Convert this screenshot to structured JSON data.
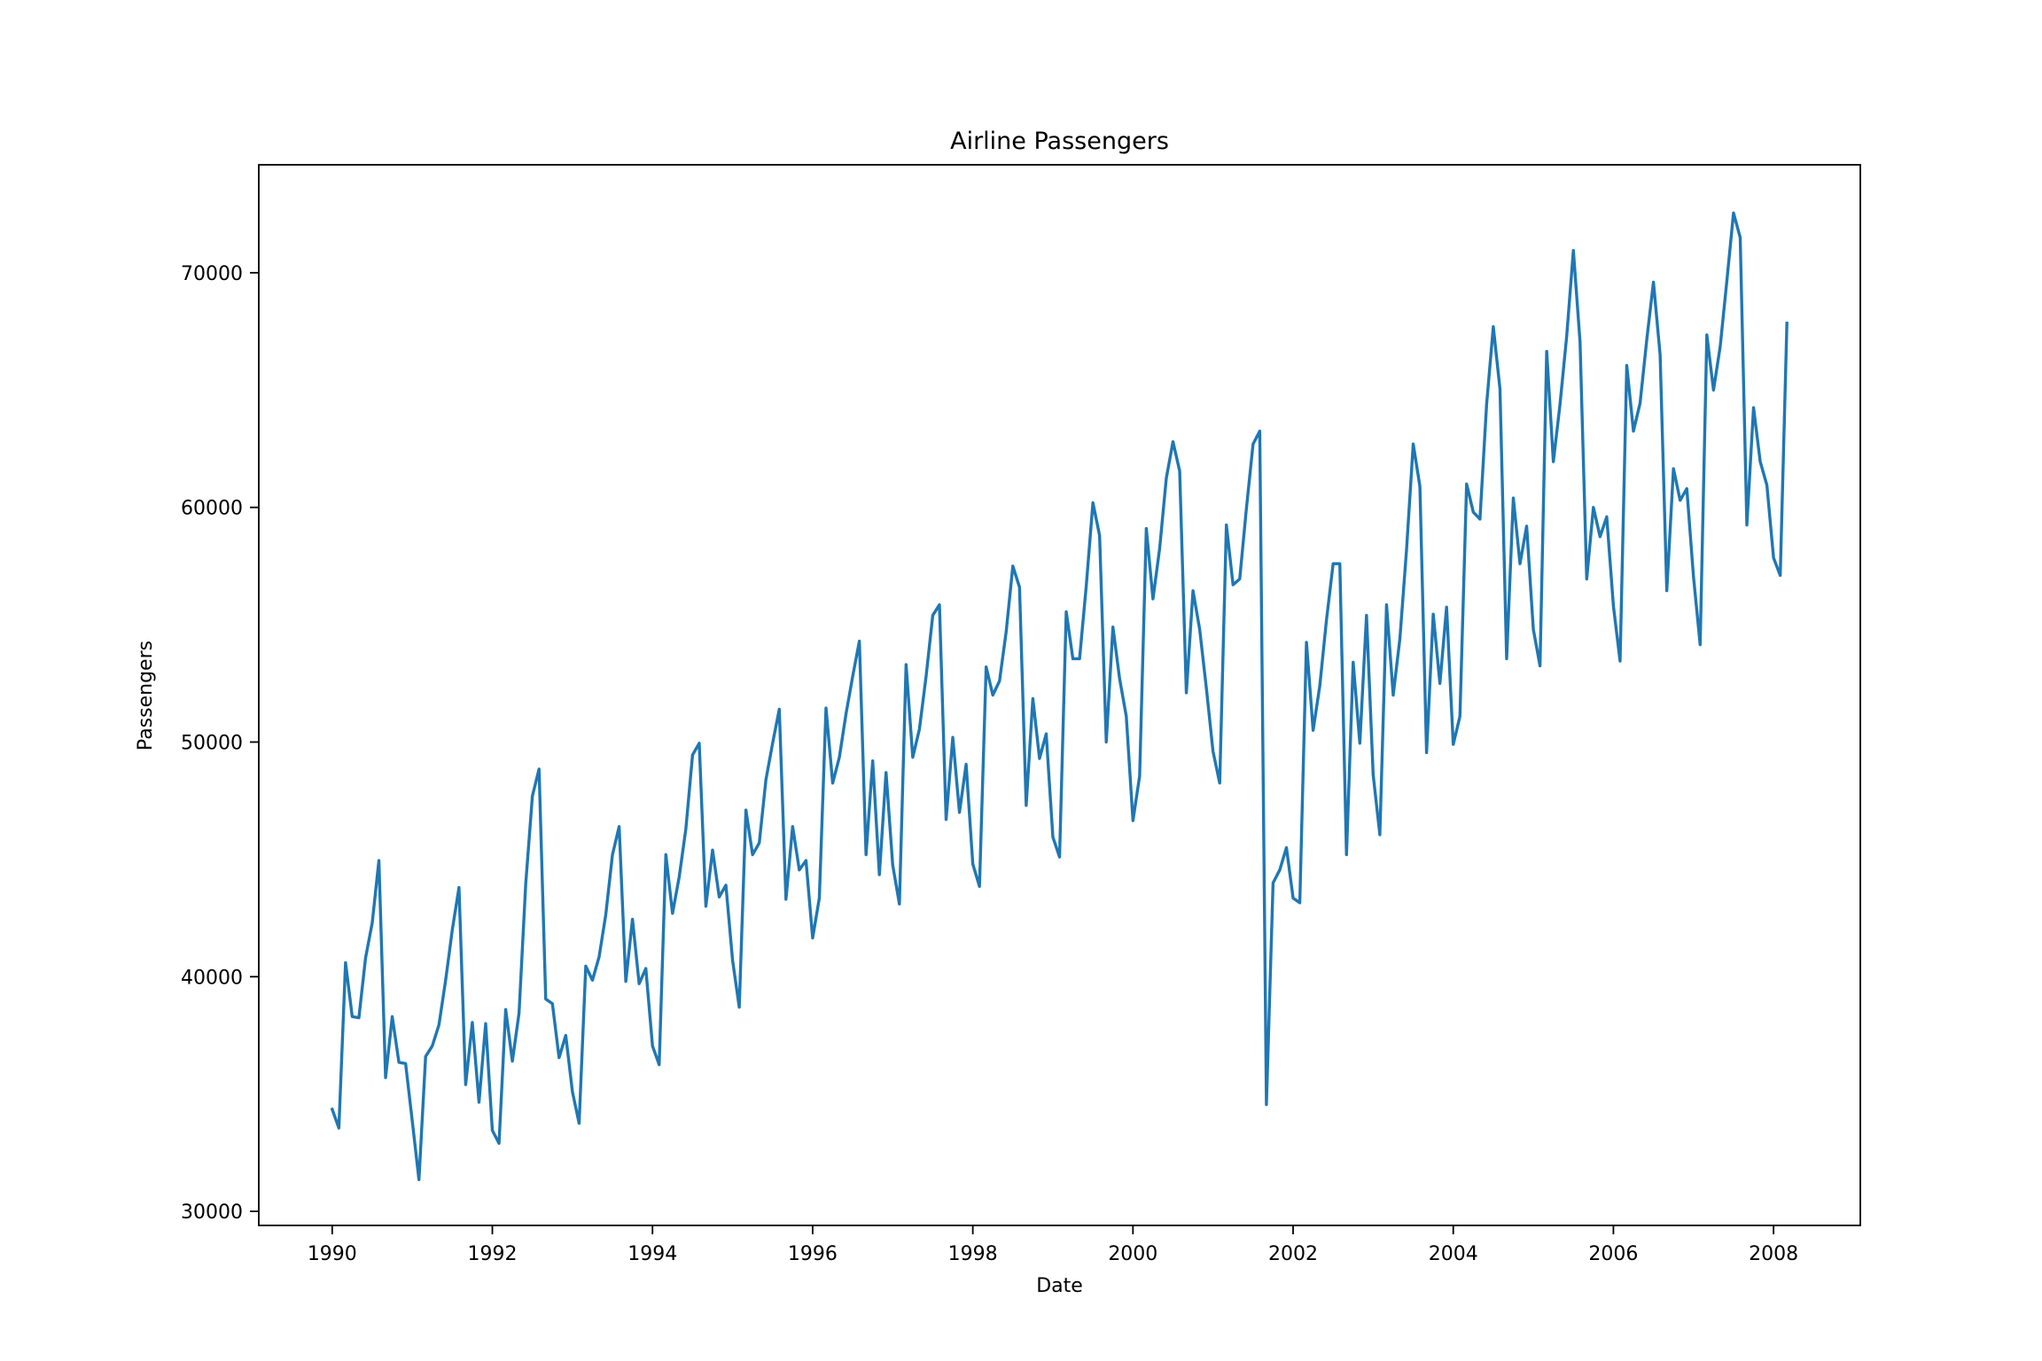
{
  "chart_data": {
    "type": "line",
    "title": "Airline Passengers",
    "xlabel": "Date",
    "ylabel": "Passengers",
    "xlim": [
      "1989-02",
      "2009-02"
    ],
    "ylim": [
      29400,
      74600
    ],
    "x_ticks": [
      "1990",
      "1992",
      "1994",
      "1996",
      "1998",
      "2000",
      "2002",
      "2004",
      "2006",
      "2008"
    ],
    "y_ticks": [
      30000,
      40000,
      50000,
      60000,
      70000
    ],
    "y_tick_labels": [
      "30000",
      "40000",
      "50000",
      "60000",
      "70000"
    ],
    "grid": false,
    "color": "#1f77b4",
    "series": [
      {
        "start": "1990-01",
        "frequency": "monthly",
        "values": [
          34350,
          33550,
          40600,
          38300,
          38250,
          40800,
          42300,
          44950,
          35700,
          38300,
          36350,
          36300,
          33850,
          31350,
          36600,
          37050,
          37950,
          39850,
          42000,
          43800,
          35400,
          38050,
          34650,
          38000,
          33450,
          32900,
          38600,
          36400,
          38450,
          43950,
          47700,
          48850,
          39050,
          38850,
          36550,
          37500,
          35100,
          33750,
          40450,
          39850,
          40850,
          42650,
          45200,
          46400,
          39800,
          42450,
          39700,
          40350,
          37050,
          36250,
          45200,
          42700,
          44250,
          46300,
          49450,
          49950,
          43000,
          45400,
          43400,
          43900,
          40700,
          38700,
          47100,
          45200,
          45700,
          48400,
          49950,
          51400,
          43300,
          46400,
          44550,
          44950,
          41650,
          43350,
          51450,
          48250,
          49350,
          51200,
          52800,
          54300,
          45200,
          49200,
          44350,
          48700,
          44750,
          43100,
          53300,
          49350,
          50550,
          52800,
          55400,
          55850,
          46700,
          50200,
          47000,
          49050,
          44800,
          43850,
          53200,
          52000,
          52600,
          54700,
          57500,
          56600,
          47300,
          51850,
          49300,
          50350,
          45950,
          45100,
          55550,
          53550,
          53550,
          56650,
          60200,
          58800,
          50000,
          54900,
          52700,
          51100,
          46650,
          48550,
          59100,
          56100,
          58250,
          61250,
          62800,
          61550,
          52100,
          56450,
          54800,
          52300,
          49600,
          48250,
          59250,
          56700,
          56950,
          59950,
          62700,
          63250,
          34550,
          44000,
          44550,
          45500,
          43350,
          43150,
          54250,
          50500,
          52400,
          55200,
          57600,
          57600,
          45200,
          53400,
          49950,
          55400,
          48600,
          46050,
          55850,
          52000,
          54400,
          58200,
          62700,
          60900,
          49550,
          55450,
          52500,
          55750,
          49900,
          51100,
          61000,
          59800,
          59500,
          64400,
          67700,
          65050,
          53550,
          60400,
          57600,
          59200,
          54800,
          53250,
          66650,
          61950,
          64400,
          67300,
          70950,
          67050,
          56950,
          60000,
          58750,
          59600,
          55800,
          53450,
          66050,
          63250,
          64450,
          67150,
          69600,
          66500,
          56450,
          61650,
          60300,
          60800,
          57050,
          54150,
          67350,
          65000,
          66850,
          69650,
          72550,
          71500,
          59250,
          64250,
          61950,
          60950,
          57850,
          57100,
          67850
        ]
      }
    ]
  }
}
